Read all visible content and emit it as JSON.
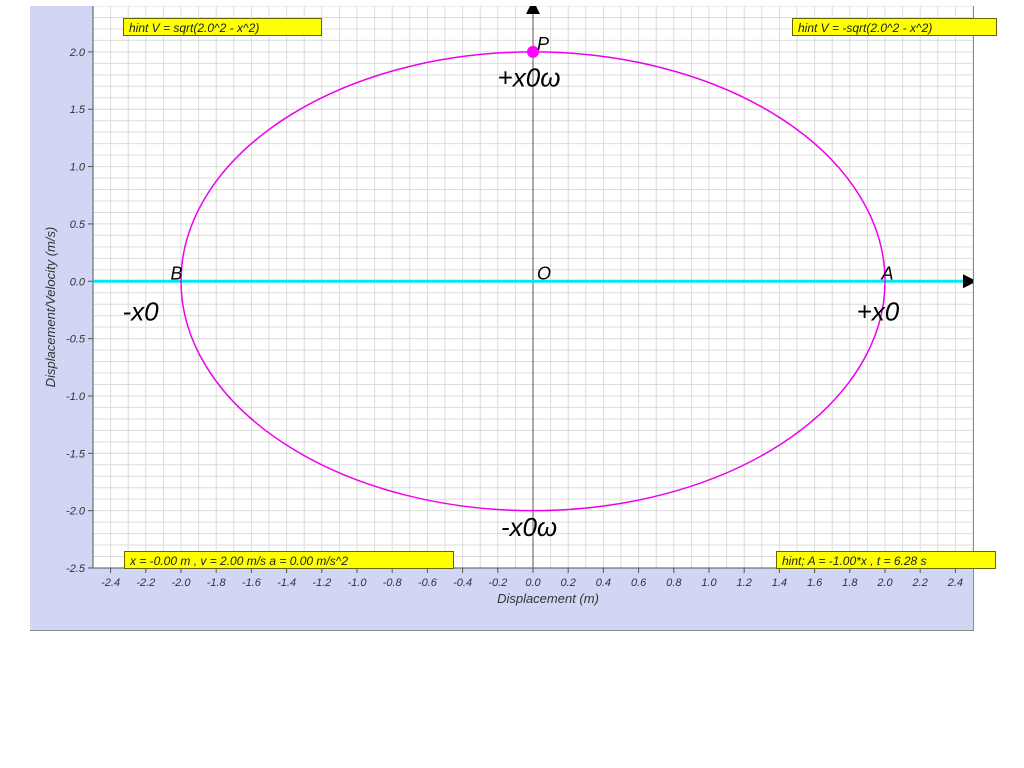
{
  "chart_data": {
    "type": "line",
    "xlabel": "Displacement (m)",
    "ylabel": "Displacement/Velocity (m/s)",
    "xlim": [
      -2.5,
      2.5
    ],
    "ylim": [
      -2.5,
      2.4
    ],
    "x_ticks": [
      -2.4,
      -2.2,
      -2.0,
      -1.8,
      -1.6,
      -1.4,
      -1.2,
      -1.0,
      -0.8,
      -0.6,
      -0.4,
      -0.2,
      0.0,
      0.2,
      0.4,
      0.6,
      0.8,
      1.0,
      1.2,
      1.4,
      1.6,
      1.8,
      2.0,
      2.2,
      2.4
    ],
    "y_ticks": [
      -2.5,
      -2.0,
      -1.5,
      -1.0,
      -0.5,
      0.0,
      0.5,
      1.0,
      1.5,
      2.0
    ],
    "grid": true,
    "ellipse": {
      "center": [
        0,
        0
      ],
      "rx": 2.0,
      "ry": 2.0,
      "color": "#ee00ee"
    },
    "displacement_line": {
      "y": 0,
      "color": "#00e6f2"
    },
    "point_P": {
      "x": 0.0,
      "y": 2.0,
      "color": "#ff00ff"
    },
    "annotations": {
      "P": "P",
      "O": "O",
      "A": "A",
      "B": "B",
      "plus_x0w": "+x0ω",
      "minus_x0w": "-x0ω",
      "minus_x0": "-x0",
      "plus_x0": "+x0"
    }
  },
  "hints": {
    "top_left": "hint V = sqrt(2.0^2 - x^2)",
    "top_right": "hint V = -sqrt(2.0^2 - x^2)",
    "bottom_left": "x = -0.00 m , v = 2.00 m/s a = 0.00 m/s^2",
    "bottom_right": "hint; A = -1.00*x , t = 6.28 s"
  }
}
